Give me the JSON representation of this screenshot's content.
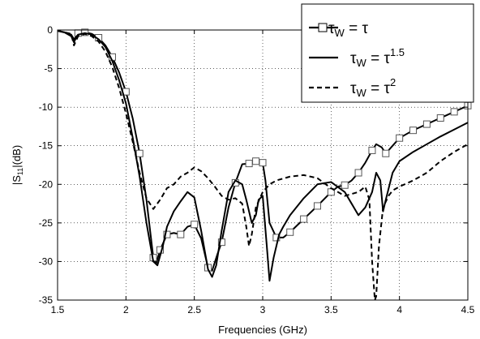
{
  "chart_data": {
    "type": "line",
    "xlabel": "Frequencies (GHz)",
    "ylabel": "|S11|(dB)",
    "ylabel_main": "|S",
    "ylabel_sub": "11",
    "ylabel_tail": "|(dB)",
    "xlim": [
      1.5,
      4.5
    ],
    "ylim": [
      -35,
      0
    ],
    "x_ticks": [
      1.5,
      2,
      2.5,
      3,
      3.5,
      4,
      4.5
    ],
    "x_tick_labels": [
      "1.5",
      "2",
      "2.5",
      "3",
      "3.5",
      "4",
      "4.5"
    ],
    "y_ticks": [
      0,
      -5,
      -10,
      -15,
      -20,
      -25,
      -30,
      -35
    ],
    "y_tick_labels": [
      "0",
      "-5",
      "-10",
      "-15",
      "-20",
      "-25",
      "-30",
      "-35"
    ],
    "grid": true,
    "grid_style": "dotted",
    "legend_position": "top-right",
    "series": [
      {
        "name": "τW = τ",
        "legend_main": "τ",
        "legend_sub": "W",
        "legend_rhs": " = τ",
        "legend_sup": "",
        "style": "solid-with-square-markers",
        "color": "#000000",
        "x": [
          1.5,
          1.55,
          1.6,
          1.62,
          1.65,
          1.7,
          1.75,
          1.8,
          1.85,
          1.9,
          1.95,
          2.0,
          2.05,
          2.1,
          2.15,
          2.2,
          2.22,
          2.25,
          2.3,
          2.35,
          2.4,
          2.45,
          2.5,
          2.55,
          2.6,
          2.63,
          2.67,
          2.7,
          2.75,
          2.8,
          2.85,
          2.9,
          2.95,
          3.0,
          3.02,
          3.05,
          3.1,
          3.15,
          3.2,
          3.3,
          3.4,
          3.5,
          3.55,
          3.6,
          3.65,
          3.7,
          3.75,
          3.8,
          3.83,
          3.87,
          3.9,
          3.95,
          4.0,
          4.05,
          4.1,
          4.15,
          4.2,
          4.25,
          4.3,
          4.35,
          4.4,
          4.45,
          4.5
        ],
        "y": [
          -0.1,
          -0.3,
          -0.8,
          -1.6,
          -0.4,
          -0.3,
          -0.5,
          -1.0,
          -2.0,
          -3.5,
          -5.5,
          -8.0,
          -11.5,
          -16.0,
          -22.0,
          -29.5,
          -30.3,
          -28.5,
          -26.5,
          -26.3,
          -26.5,
          -25.5,
          -25.2,
          -27.0,
          -30.8,
          -31.2,
          -29.0,
          -27.5,
          -23.0,
          -19.8,
          -17.4,
          -17.3,
          -17.0,
          -17.2,
          -19.5,
          -25.0,
          -26.9,
          -26.9,
          -26.2,
          -24.5,
          -22.8,
          -21.0,
          -20.3,
          -20.1,
          -19.5,
          -18.5,
          -17.2,
          -15.6,
          -14.8,
          -15.2,
          -16.0,
          -15.0,
          -14.0,
          -13.5,
          -13.0,
          -12.6,
          -12.2,
          -11.8,
          -11.4,
          -11.0,
          -10.6,
          -10.2,
          -9.8
        ],
        "marker_x": [
          1.65,
          1.7,
          1.8,
          1.9,
          2.0,
          2.1,
          2.2,
          2.25,
          2.3,
          2.4,
          2.5,
          2.6,
          2.7,
          2.8,
          2.9,
          2.95,
          3.0,
          3.1,
          3.2,
          3.3,
          3.4,
          3.5,
          3.6,
          3.7,
          3.8,
          3.9,
          4.0,
          4.1,
          4.2,
          4.3,
          4.4,
          4.5
        ]
      },
      {
        "name": "τW = τ1.5",
        "legend_main": "τ",
        "legend_sub": "W",
        "legend_rhs": " = τ",
        "legend_sup": "1.5",
        "style": "solid",
        "color": "#000000",
        "x": [
          1.5,
          1.55,
          1.6,
          1.62,
          1.65,
          1.7,
          1.75,
          1.8,
          1.85,
          1.9,
          1.95,
          2.0,
          2.05,
          2.1,
          2.15,
          2.2,
          2.23,
          2.27,
          2.3,
          2.35,
          2.4,
          2.45,
          2.5,
          2.55,
          2.6,
          2.63,
          2.66,
          2.7,
          2.75,
          2.8,
          2.85,
          2.88,
          2.92,
          2.95,
          2.97,
          3.0,
          3.03,
          3.05,
          3.08,
          3.12,
          3.15,
          3.2,
          3.3,
          3.4,
          3.5,
          3.6,
          3.65,
          3.7,
          3.75,
          3.8,
          3.83,
          3.86,
          3.88,
          3.9,
          3.95,
          4.0,
          4.1,
          4.2,
          4.3,
          4.4,
          4.5
        ],
        "y": [
          -0.1,
          -0.3,
          -0.6,
          -1.2,
          -0.6,
          -0.4,
          -0.6,
          -1.2,
          -2.2,
          -4.0,
          -6.5,
          -9.5,
          -14.0,
          -19.0,
          -25.0,
          -30.0,
          -30.5,
          -28.0,
          -25.5,
          -23.5,
          -22.2,
          -21.0,
          -21.7,
          -26.0,
          -31.0,
          -32.0,
          -30.5,
          -26.0,
          -21.0,
          -19.5,
          -20.0,
          -22.0,
          -25.0,
          -24.0,
          -22.0,
          -21.5,
          -28.0,
          -32.5,
          -29.5,
          -26.5,
          -25.5,
          -24.0,
          -21.8,
          -20.0,
          -19.7,
          -21.0,
          -22.5,
          -24.0,
          -23.0,
          -21.0,
          -18.5,
          -19.5,
          -23.5,
          -22.0,
          -18.5,
          -17.0,
          -15.8,
          -14.8,
          -13.8,
          -12.9,
          -12.0
        ]
      },
      {
        "name": "τW = τ2",
        "legend_main": "τ",
        "legend_sub": "W",
        "legend_rhs": " = τ",
        "legend_sup": "2",
        "style": "dashed",
        "color": "#000000",
        "x": [
          1.5,
          1.55,
          1.6,
          1.62,
          1.65,
          1.7,
          1.75,
          1.8,
          1.85,
          1.9,
          1.95,
          2.0,
          2.05,
          2.1,
          2.15,
          2.2,
          2.25,
          2.3,
          2.35,
          2.4,
          2.45,
          2.5,
          2.55,
          2.6,
          2.65,
          2.7,
          2.75,
          2.8,
          2.85,
          2.88,
          2.9,
          2.92,
          2.95,
          3.0,
          3.05,
          3.1,
          3.2,
          3.3,
          3.4,
          3.5,
          3.6,
          3.7,
          3.75,
          3.78,
          3.8,
          3.82,
          3.83,
          3.85,
          3.88,
          3.92,
          3.95,
          4.0,
          4.1,
          4.2,
          4.3,
          4.4,
          4.5
        ],
        "y": [
          -0.1,
          -0.3,
          -0.5,
          -2.0,
          -0.8,
          -0.5,
          -0.8,
          -1.5,
          -2.8,
          -4.8,
          -7.5,
          -10.8,
          -14.5,
          -18.5,
          -21.8,
          -23.2,
          -22.0,
          -20.5,
          -20.0,
          -19.0,
          -18.5,
          -17.8,
          -18.3,
          -19.2,
          -20.3,
          -21.5,
          -22.0,
          -21.8,
          -22.5,
          -25.5,
          -28.0,
          -26.5,
          -23.0,
          -21.0,
          -20.0,
          -19.5,
          -19.0,
          -18.8,
          -19.2,
          -20.5,
          -21.5,
          -21.0,
          -20.3,
          -22.0,
          -30.0,
          -35.0,
          -34.5,
          -28.0,
          -23.0,
          -21.5,
          -20.8,
          -20.3,
          -19.5,
          -18.5,
          -17.0,
          -15.8,
          -14.8
        ]
      }
    ]
  }
}
